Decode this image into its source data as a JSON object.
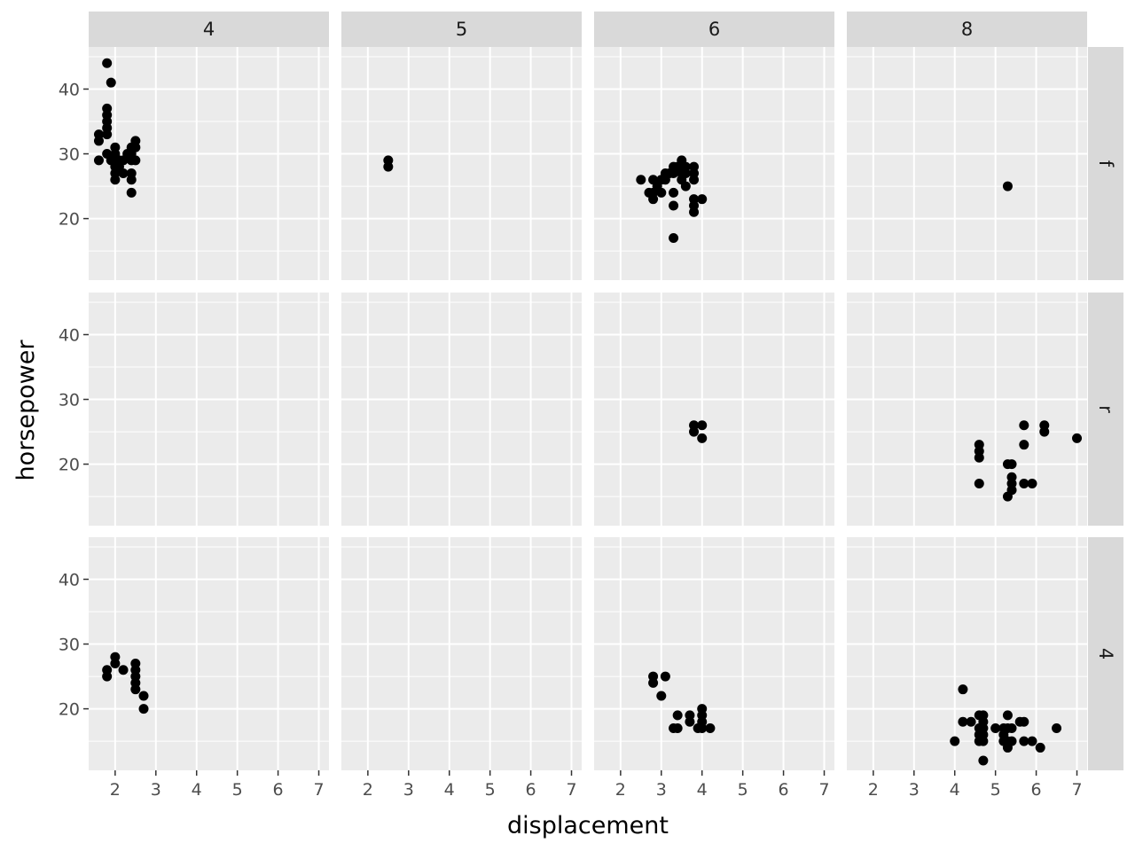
{
  "chart_data": {
    "type": "scatter",
    "title": "",
    "xlabel": "displacement",
    "ylabel": "horsepower",
    "xlim": [
      1.35,
      7.25
    ],
    "ylim": [
      10.5,
      46.5
    ],
    "x_ticks": [
      2,
      3,
      4,
      5,
      6,
      7
    ],
    "y_ticks": [
      20,
      30,
      40
    ],
    "grid": true,
    "legend": "none",
    "colors": {
      "panel": "#ebebeb",
      "strip": "#d9d9d9",
      "grid": "#ffffff",
      "point": "#000000",
      "tick_text": "#4d4d4d"
    },
    "columns": [
      "4",
      "5",
      "6",
      "8"
    ],
    "rows": [
      "f",
      "r",
      "4"
    ],
    "panels": [
      {
        "col": "4",
        "row": "f",
        "points": [
          [
            1.8,
            44
          ],
          [
            1.9,
            41
          ],
          [
            1.8,
            37
          ],
          [
            1.8,
            36
          ],
          [
            1.8,
            35
          ],
          [
            1.8,
            34
          ],
          [
            1.8,
            33
          ],
          [
            1.6,
            33
          ],
          [
            1.6,
            32
          ],
          [
            2.5,
            32
          ],
          [
            2.5,
            31
          ],
          [
            2.4,
            31
          ],
          [
            2.0,
            31
          ],
          [
            1.6,
            29
          ],
          [
            1.8,
            30
          ],
          [
            1.9,
            29
          ],
          [
            2.0,
            30
          ],
          [
            2.0,
            29
          ],
          [
            2.1,
            29
          ],
          [
            2.2,
            29
          ],
          [
            2.3,
            30
          ],
          [
            2.4,
            30
          ],
          [
            2.4,
            29
          ],
          [
            2.5,
            29
          ],
          [
            2.0,
            28
          ],
          [
            2.1,
            28
          ],
          [
            2.0,
            27
          ],
          [
            2.2,
            27
          ],
          [
            2.4,
            27
          ],
          [
            2.0,
            26
          ],
          [
            2.4,
            26
          ],
          [
            2.4,
            24
          ]
        ]
      },
      {
        "col": "5",
        "row": "f",
        "points": [
          [
            2.5,
            29
          ],
          [
            2.5,
            28
          ]
        ]
      },
      {
        "col": "6",
        "row": "f",
        "points": [
          [
            2.5,
            26
          ],
          [
            2.7,
            24
          ],
          [
            2.8,
            24
          ],
          [
            2.8,
            23
          ],
          [
            2.8,
            26
          ],
          [
            2.9,
            25
          ],
          [
            3.0,
            24
          ],
          [
            3.0,
            26
          ],
          [
            3.1,
            27
          ],
          [
            3.1,
            26
          ],
          [
            3.2,
            27
          ],
          [
            3.3,
            28
          ],
          [
            3.3,
            27
          ],
          [
            3.3,
            24
          ],
          [
            3.3,
            22
          ],
          [
            3.3,
            17
          ],
          [
            3.4,
            28
          ],
          [
            3.5,
            29
          ],
          [
            3.5,
            27
          ],
          [
            3.5,
            26
          ],
          [
            3.6,
            28
          ],
          [
            3.6,
            27
          ],
          [
            3.6,
            25
          ],
          [
            3.8,
            28
          ],
          [
            3.8,
            27
          ],
          [
            3.8,
            26
          ],
          [
            3.8,
            23
          ],
          [
            3.8,
            22
          ],
          [
            3.8,
            21
          ],
          [
            4.0,
            23
          ]
        ]
      },
      {
        "col": "8",
        "row": "f",
        "points": [
          [
            5.3,
            25
          ]
        ]
      },
      {
        "col": "4",
        "row": "r",
        "points": []
      },
      {
        "col": "5",
        "row": "r",
        "points": []
      },
      {
        "col": "6",
        "row": "r",
        "points": [
          [
            3.8,
            26
          ],
          [
            3.8,
            25
          ],
          [
            4.0,
            26
          ],
          [
            4.0,
            24
          ]
        ]
      },
      {
        "col": "8",
        "row": "r",
        "points": [
          [
            4.6,
            23
          ],
          [
            4.6,
            22
          ],
          [
            4.6,
            21
          ],
          [
            4.6,
            17
          ],
          [
            5.3,
            20
          ],
          [
            5.4,
            20
          ],
          [
            5.3,
            15
          ],
          [
            5.4,
            18
          ],
          [
            5.4,
            17
          ],
          [
            5.4,
            16
          ],
          [
            5.7,
            26
          ],
          [
            5.7,
            23
          ],
          [
            5.7,
            17
          ],
          [
            5.9,
            17
          ],
          [
            6.2,
            26
          ],
          [
            6.2,
            25
          ],
          [
            7.0,
            24
          ]
        ]
      },
      {
        "col": "4",
        "row": "4",
        "points": [
          [
            1.8,
            26
          ],
          [
            1.8,
            25
          ],
          [
            2.0,
            28
          ],
          [
            2.0,
            27
          ],
          [
            2.2,
            26
          ],
          [
            2.5,
            27
          ],
          [
            2.5,
            26
          ],
          [
            2.5,
            25
          ],
          [
            2.5,
            24
          ],
          [
            2.5,
            23
          ],
          [
            2.7,
            22
          ],
          [
            2.7,
            20
          ]
        ]
      },
      {
        "col": "5",
        "row": "4",
        "points": []
      },
      {
        "col": "6",
        "row": "4",
        "points": [
          [
            2.8,
            25
          ],
          [
            2.8,
            24
          ],
          [
            3.1,
            25
          ],
          [
            3.0,
            22
          ],
          [
            3.3,
            17
          ],
          [
            3.4,
            17
          ],
          [
            3.4,
            19
          ],
          [
            3.7,
            19
          ],
          [
            3.7,
            18
          ],
          [
            3.9,
            17
          ],
          [
            4.0,
            20
          ],
          [
            4.0,
            19
          ],
          [
            4.0,
            18
          ],
          [
            4.0,
            17
          ],
          [
            4.2,
            17
          ]
        ]
      },
      {
        "col": "8",
        "row": "4",
        "points": [
          [
            4.0,
            15
          ],
          [
            4.2,
            23
          ],
          [
            4.2,
            18
          ],
          [
            4.4,
            18
          ],
          [
            4.6,
            19
          ],
          [
            4.6,
            17
          ],
          [
            4.6,
            16
          ],
          [
            4.6,
            15
          ],
          [
            4.7,
            19
          ],
          [
            4.7,
            18
          ],
          [
            4.7,
            17
          ],
          [
            4.7,
            16
          ],
          [
            4.7,
            15
          ],
          [
            4.7,
            12
          ],
          [
            5.0,
            17
          ],
          [
            5.2,
            17
          ],
          [
            5.2,
            16
          ],
          [
            5.2,
            15
          ],
          [
            5.3,
            19
          ],
          [
            5.3,
            17
          ],
          [
            5.3,
            15
          ],
          [
            5.3,
            14
          ],
          [
            5.4,
            17
          ],
          [
            5.4,
            15
          ],
          [
            5.6,
            18
          ],
          [
            5.7,
            18
          ],
          [
            5.7,
            15
          ],
          [
            5.9,
            15
          ],
          [
            6.1,
            14
          ],
          [
            6.5,
            17
          ]
        ]
      }
    ]
  }
}
